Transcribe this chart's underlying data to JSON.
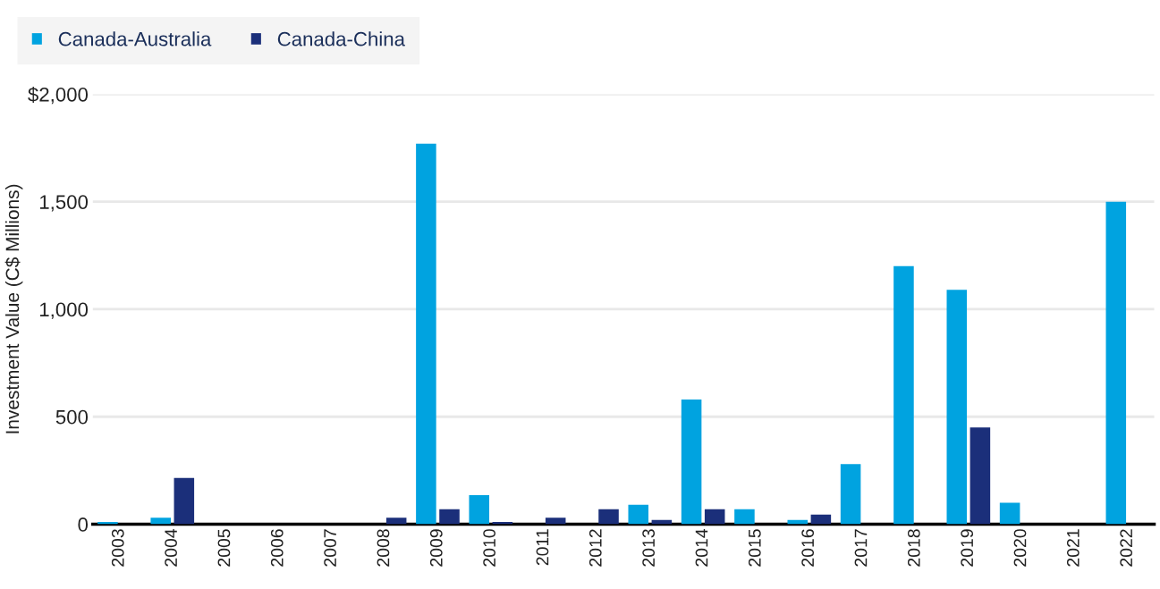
{
  "chart_data": {
    "type": "bar",
    "ylabel": "Investment Value (C$ Millions)",
    "categories": [
      "2003",
      "2004",
      "2005",
      "2006",
      "2007",
      "2008",
      "2009",
      "2010",
      "2011",
      "2012",
      "2013",
      "2014",
      "2015",
      "2016",
      "2017",
      "2018",
      "2019",
      "2020",
      "2021",
      "2022"
    ],
    "series": [
      {
        "name": "Canada-Australia",
        "color": "#00a3e0",
        "values": [
          10,
          30,
          0,
          0,
          0,
          0,
          1770,
          135,
          0,
          0,
          90,
          580,
          70,
          20,
          280,
          1200,
          1090,
          100,
          0,
          1500
        ]
      },
      {
        "name": "Canada-China",
        "color": "#1b2f7a",
        "values": [
          0,
          215,
          0,
          0,
          0,
          30,
          70,
          10,
          30,
          70,
          20,
          70,
          0,
          45,
          0,
          0,
          450,
          0,
          0,
          0
        ]
      }
    ],
    "ylim": [
      0,
      2000
    ],
    "yticks": [
      0,
      500,
      {
        "value": 1000,
        "label": "1,000"
      },
      {
        "value": 1500,
        "label": "1,500"
      },
      {
        "value": 2000,
        "label": "$2,000"
      }
    ],
    "grid": "y",
    "legend": "top left"
  }
}
